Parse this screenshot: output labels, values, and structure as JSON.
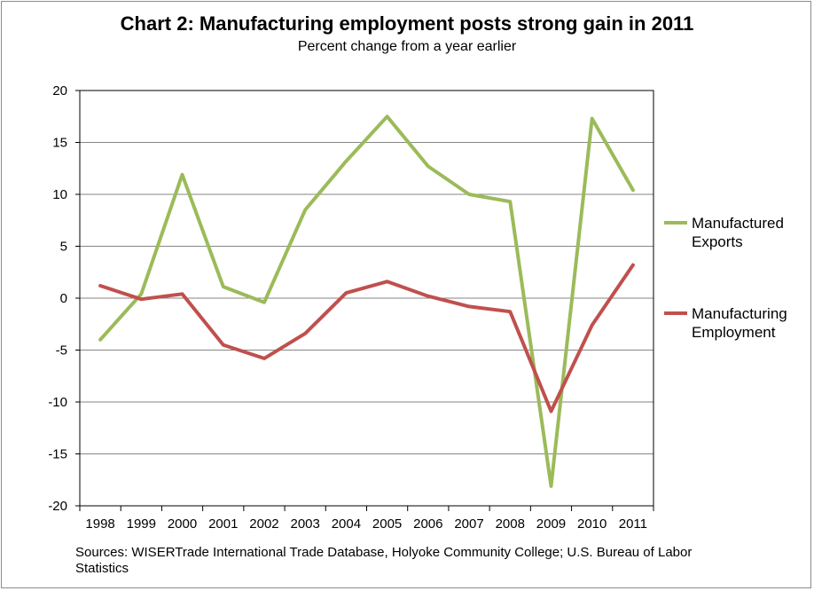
{
  "chart_data": {
    "type": "line",
    "title": "Chart 2: Manufacturing employment posts strong gain in 2011",
    "subtitle": "Percent change from a year earlier",
    "x": [
      "1998",
      "1999",
      "2000",
      "2001",
      "2002",
      "2003",
      "2004",
      "2005",
      "2006",
      "2007",
      "2008",
      "2009",
      "2010",
      "2011"
    ],
    "ylim": [
      -20,
      20
    ],
    "yticks": [
      "20",
      "15",
      "10",
      "5",
      "0",
      "-5",
      "-10",
      "-15",
      "-20"
    ],
    "grid": true,
    "legend_position": "right",
    "series": [
      {
        "name": "Manufactured Exports",
        "legend_lines": [
          "Manufactured",
          "Exports"
        ],
        "color": "#9bbb59",
        "values": [
          -4.0,
          0.4,
          11.9,
          1.1,
          -0.4,
          8.5,
          13.2,
          17.5,
          12.7,
          10.0,
          9.3,
          -18.1,
          17.3,
          10.4
        ]
      },
      {
        "name": "Manufacturing Employment",
        "legend_lines": [
          "Manufacturing",
          "Employment"
        ],
        "color": "#c0504d",
        "values": [
          1.2,
          -0.1,
          0.4,
          -4.5,
          -5.8,
          -3.4,
          0.5,
          1.6,
          0.2,
          -0.8,
          -1.3,
          -10.9,
          -2.6,
          3.2
        ]
      }
    ],
    "source": "Sources: WISERTrade International Trade Database, Holyoke Community College; U.S. Bureau of Labor Statistics"
  }
}
